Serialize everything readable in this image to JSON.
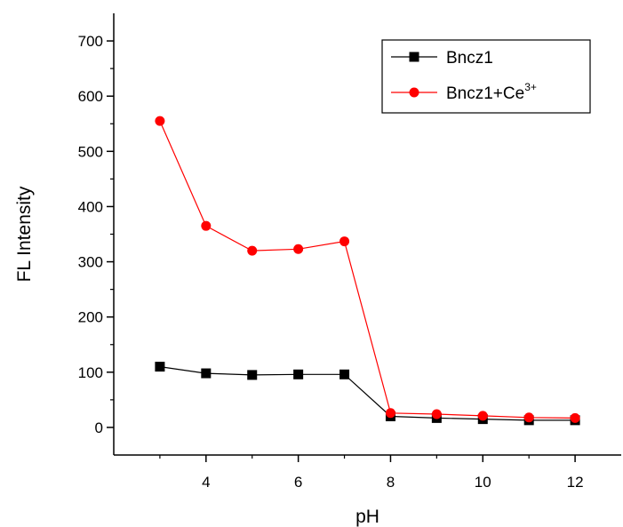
{
  "chart_data": {
    "type": "line",
    "title": "",
    "xlabel": "pH",
    "ylabel": "FL Intensity",
    "xlim": [
      2,
      13
    ],
    "ylim": [
      -50,
      750
    ],
    "xticks": [
      4,
      6,
      8,
      10,
      12
    ],
    "yticks": [
      0,
      100,
      200,
      300,
      400,
      500,
      600,
      700
    ],
    "x_minor_ticks": [
      3,
      5,
      7,
      9,
      11
    ],
    "y_minor_ticks": [
      50,
      150,
      250,
      350,
      450,
      550,
      650
    ],
    "x_tick_labels": [
      "4",
      "6",
      "8",
      "10",
      "12"
    ],
    "y_tick_labels": [
      "0",
      "100",
      "200",
      "300",
      "400",
      "500",
      "600",
      "700"
    ],
    "grid": false,
    "legend_position": "top-right",
    "legend_box": true,
    "x": [
      3,
      4,
      5,
      6,
      7,
      8,
      9,
      10,
      11,
      12
    ],
    "series": [
      {
        "name": "Bncz1",
        "name_base": "Bncz1",
        "name_superscript": "",
        "color": "#000000",
        "marker": "square",
        "values": [
          110,
          98,
          95,
          96,
          96,
          20,
          17,
          15,
          13,
          13
        ]
      },
      {
        "name": "Bncz1+Ce3+",
        "name_base": "Bncz1+Ce",
        "name_superscript": "3+",
        "color": "#ff0000",
        "marker": "circle",
        "values": [
          555,
          365,
          320,
          323,
          337,
          26,
          24,
          21,
          18,
          17
        ]
      }
    ]
  }
}
